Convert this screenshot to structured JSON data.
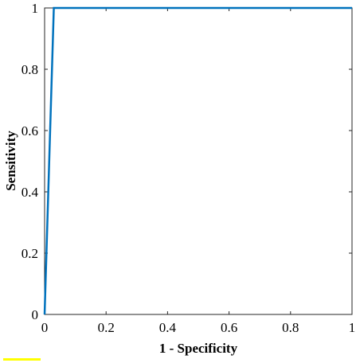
{
  "chart_data": {
    "type": "line",
    "title": "",
    "xlabel": "1 - Specificity",
    "ylabel": "Sensitivity",
    "xlim": [
      0,
      1
    ],
    "ylim": [
      0,
      1
    ],
    "grid": false,
    "x_ticks": [
      "0",
      "0.2",
      "0.4",
      "0.6",
      "0.8",
      "1"
    ],
    "y_ticks": [
      "0",
      "0.2",
      "0.4",
      "0.6",
      "0.8",
      "1"
    ],
    "series": [
      {
        "color": "#0072bd",
        "x": [
          0,
          0.03,
          1
        ],
        "y": [
          0,
          1,
          1
        ]
      }
    ]
  },
  "colors": {
    "highlight": "#ffff00"
  }
}
